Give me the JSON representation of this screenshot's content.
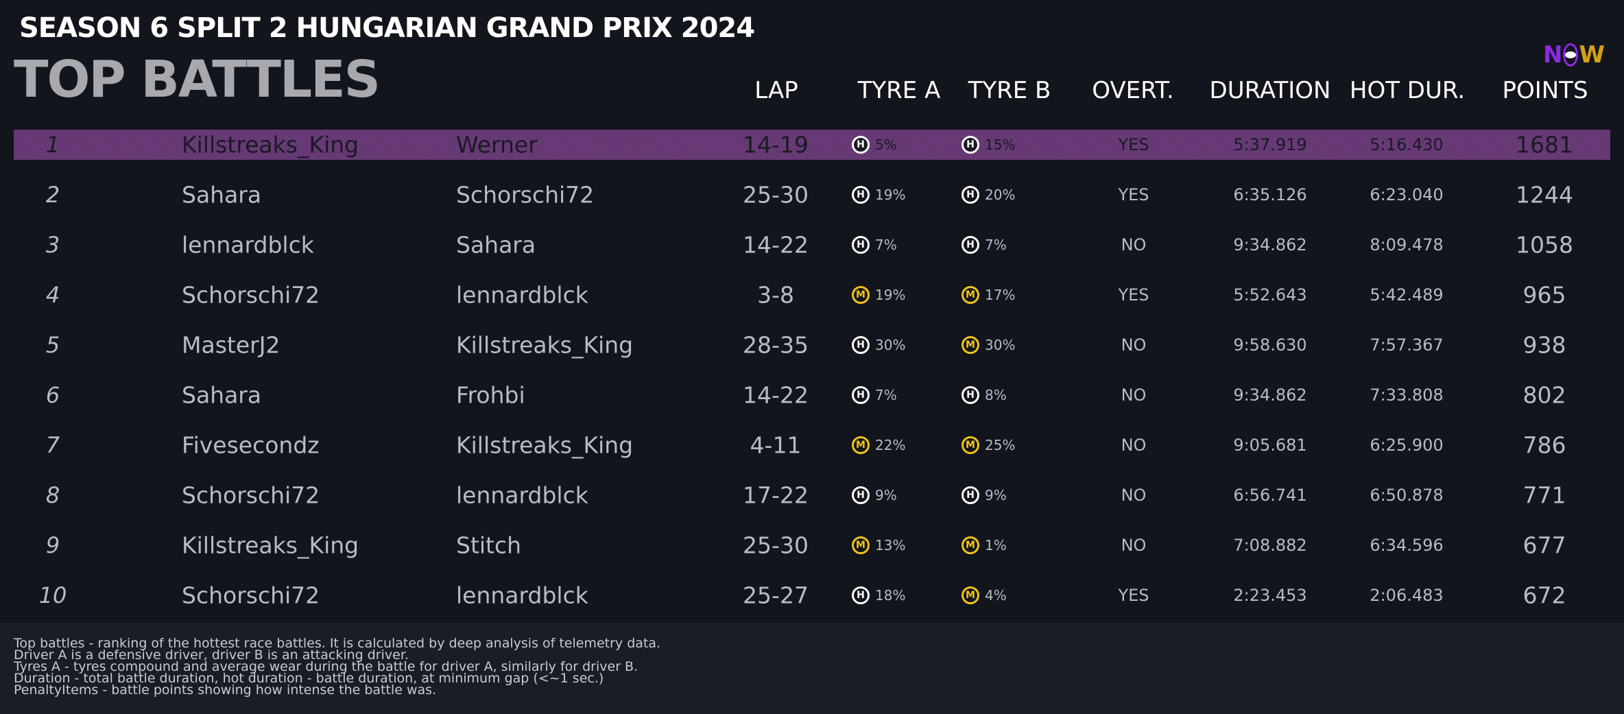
{
  "header": {
    "subtitle": "SEASON 6 SPLIT 2 HUNGARIAN GRAND PRIX 2024",
    "title": "TOP BATTLES"
  },
  "logo": {
    "text_n": "N",
    "text_w": "W",
    "icon": "now-logo-icon"
  },
  "columns": {
    "lap": "LAP",
    "tyre_a": "TYRE A",
    "tyre_b": "TYRE B",
    "overt": "OVERT.",
    "duration": "DURATION",
    "hot_dur": "HOT DUR.",
    "points": "POINTS"
  },
  "colors": {
    "background": "#12151c",
    "highlight": "#6b3d7a",
    "hard_tyre": "#ffffff",
    "medium_tyre": "#f3c318"
  },
  "rows": [
    {
      "rank": "1",
      "driver_a": "Killstreaks_King",
      "driver_b": "Werner",
      "lap": "14-19",
      "tyre_a": {
        "c": "H",
        "w": "5%"
      },
      "tyre_b": {
        "c": "H",
        "w": "15%"
      },
      "overt": "YES",
      "duration": "5:37.919",
      "hot": "5:16.430",
      "points": "1681"
    },
    {
      "rank": "2",
      "driver_a": "Sahara",
      "driver_b": "Schorschi72",
      "lap": "25-30",
      "tyre_a": {
        "c": "H",
        "w": "19%"
      },
      "tyre_b": {
        "c": "H",
        "w": "20%"
      },
      "overt": "YES",
      "duration": "6:35.126",
      "hot": "6:23.040",
      "points": "1244"
    },
    {
      "rank": "3",
      "driver_a": "lennardblck",
      "driver_b": "Sahara",
      "lap": "14-22",
      "tyre_a": {
        "c": "H",
        "w": "7%"
      },
      "tyre_b": {
        "c": "H",
        "w": "7%"
      },
      "overt": "NO",
      "duration": "9:34.862",
      "hot": "8:09.478",
      "points": "1058"
    },
    {
      "rank": "4",
      "driver_a": "Schorschi72",
      "driver_b": "lennardblck",
      "lap": "3-8",
      "tyre_a": {
        "c": "M",
        "w": "19%"
      },
      "tyre_b": {
        "c": "M",
        "w": "17%"
      },
      "overt": "YES",
      "duration": "5:52.643",
      "hot": "5:42.489",
      "points": "965"
    },
    {
      "rank": "5",
      "driver_a": "MasterJ2",
      "driver_b": "Killstreaks_King",
      "lap": "28-35",
      "tyre_a": {
        "c": "H",
        "w": "30%"
      },
      "tyre_b": {
        "c": "M",
        "w": "30%"
      },
      "overt": "NO",
      "duration": "9:58.630",
      "hot": "7:57.367",
      "points": "938"
    },
    {
      "rank": "6",
      "driver_a": "Sahara",
      "driver_b": "Frohbi",
      "lap": "14-22",
      "tyre_a": {
        "c": "H",
        "w": "7%"
      },
      "tyre_b": {
        "c": "H",
        "w": "8%"
      },
      "overt": "NO",
      "duration": "9:34.862",
      "hot": "7:33.808",
      "points": "802"
    },
    {
      "rank": "7",
      "driver_a": "Fivesecondz",
      "driver_b": "Killstreaks_King",
      "lap": "4-11",
      "tyre_a": {
        "c": "M",
        "w": "22%"
      },
      "tyre_b": {
        "c": "M",
        "w": "25%"
      },
      "overt": "NO",
      "duration": "9:05.681",
      "hot": "6:25.900",
      "points": "786"
    },
    {
      "rank": "8",
      "driver_a": "Schorschi72",
      "driver_b": "lennardblck",
      "lap": "17-22",
      "tyre_a": {
        "c": "H",
        "w": "9%"
      },
      "tyre_b": {
        "c": "H",
        "w": "9%"
      },
      "overt": "NO",
      "duration": "6:56.741",
      "hot": "6:50.878",
      "points": "771"
    },
    {
      "rank": "9",
      "driver_a": "Killstreaks_King",
      "driver_b": "Stitch",
      "lap": "25-30",
      "tyre_a": {
        "c": "M",
        "w": "13%"
      },
      "tyre_b": {
        "c": "M",
        "w": "1%"
      },
      "overt": "NO",
      "duration": "7:08.882",
      "hot": "6:34.596",
      "points": "677"
    },
    {
      "rank": "10",
      "driver_a": "Schorschi72",
      "driver_b": "lennardblck",
      "lap": "25-27",
      "tyre_a": {
        "c": "H",
        "w": "18%"
      },
      "tyre_b": {
        "c": "M",
        "w": "4%"
      },
      "overt": "YES",
      "duration": "2:23.453",
      "hot": "2:06.483",
      "points": "672"
    }
  ],
  "footer": [
    "Top battles - ranking of the hottest race battles. It is calculated by deep analysis of telemetry data.",
    "Driver A is a defensive driver, driver B is an attacking driver.",
    "Tyres A - tyres compound and average wear during the battle for driver A, similarly for driver B.",
    "Duration - total battle duration, hot duration - battle duration, at minimum gap (<~1 sec.)",
    "PenaltyItems - battle points showing how intense the battle was."
  ]
}
